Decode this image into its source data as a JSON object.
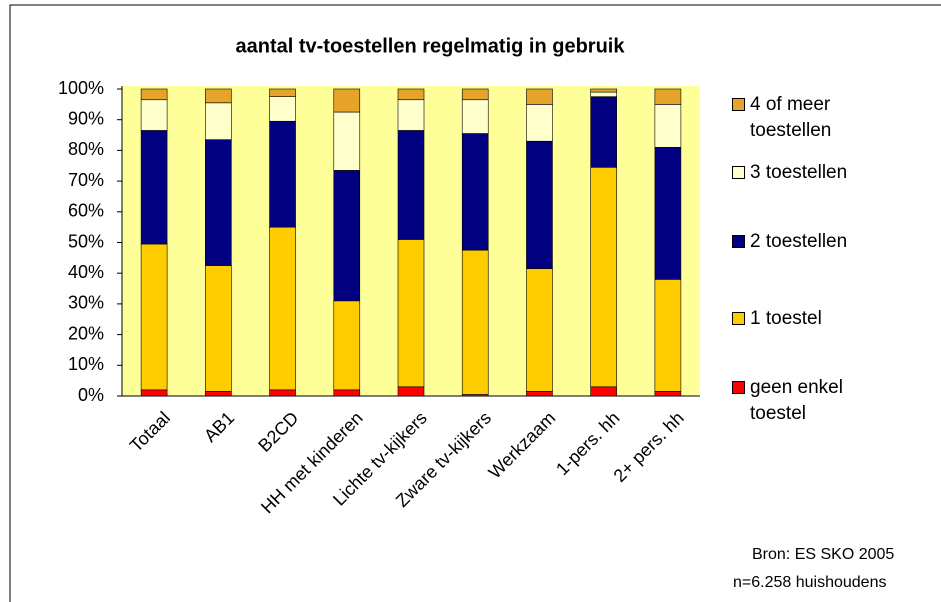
{
  "chart_data": {
    "type": "stacked_bar",
    "title": "aantal tv-toestellen regelmatig in gebruik",
    "categories": [
      "Totaal",
      "AB1",
      "B2CD",
      "HH met kinderen",
      "Lichte tv-kijkers",
      "Zware tv-kijkers",
      "Werkzaam",
      "1-pers. hh",
      "2+ pers. hh"
    ],
    "series": [
      {
        "name": "geen enkel toestel",
        "color": "#ff0000",
        "values": [
          2,
          1.5,
          2,
          2,
          3,
          0.5,
          1.5,
          3,
          1.5
        ]
      },
      {
        "name": "1 toestel",
        "color": "#ffcc00",
        "values": [
          47.5,
          41,
          53,
          29,
          48,
          47,
          40,
          71.5,
          36.5
        ]
      },
      {
        "name": "2 toestellen",
        "color": "#000080",
        "values": [
          37,
          41,
          34.5,
          42.5,
          35.5,
          38,
          41.5,
          23,
          43
        ]
      },
      {
        "name": "3 toestellen",
        "color": "#ffffcc",
        "values": [
          10,
          12,
          8,
          19,
          10,
          11,
          12,
          1.5,
          14
        ]
      },
      {
        "name": "4 of meer toestellen",
        "color": "#e6a52a",
        "values": [
          3.5,
          4.5,
          2.5,
          7.5,
          3.5,
          3.5,
          5,
          1,
          5
        ]
      }
    ],
    "ylim": [
      0,
      100
    ],
    "yticks": [
      {
        "value": 0,
        "label": "0%"
      },
      {
        "value": 10,
        "label": "10%"
      },
      {
        "value": 20,
        "label": "20%"
      },
      {
        "value": 30,
        "label": "30%"
      },
      {
        "value": 40,
        "label": "40%"
      },
      {
        "value": 50,
        "label": "50%"
      },
      {
        "value": 60,
        "label": "60%"
      },
      {
        "value": 70,
        "label": "70%"
      },
      {
        "value": 80,
        "label": "80%"
      },
      {
        "value": 90,
        "label": "90%"
      },
      {
        "value": 100,
        "label": "100%"
      }
    ],
    "grid": false,
    "legend": "right",
    "plot_background": "#ffff99",
    "annotations": [
      "Bron: ES SKO 2005",
      "n=6.258 huishoudens"
    ]
  }
}
